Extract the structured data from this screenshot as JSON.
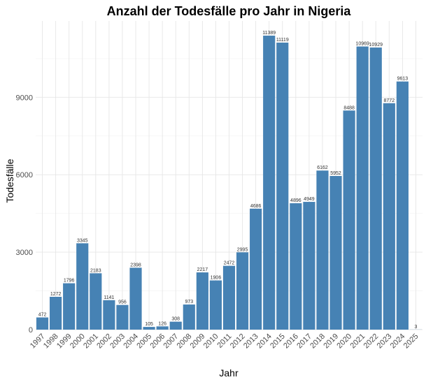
{
  "chart_data": {
    "type": "bar",
    "title": "Anzahl der Todesfälle pro Jahr in Nigeria",
    "xlabel": "Jahr",
    "ylabel": "Todesfälle",
    "categories": [
      "1997",
      "1998",
      "1999",
      "2000",
      "2001",
      "2002",
      "2003",
      "2004",
      "2005",
      "2006",
      "2007",
      "2008",
      "2009",
      "2010",
      "2011",
      "2012",
      "2013",
      "2014",
      "2015",
      "2016",
      "2017",
      "2018",
      "2019",
      "2020",
      "2021",
      "2022",
      "2023",
      "2024",
      "2025"
    ],
    "values": [
      472,
      1272,
      1796,
      3345,
      2183,
      1141,
      956,
      2398,
      105,
      126,
      308,
      973,
      2217,
      1906,
      2472,
      2995,
      4686,
      11389,
      11119,
      4896,
      4949,
      6162,
      5952,
      8488,
      10969,
      10929,
      8772,
      9613,
      3
    ],
    "data_labels": [
      "472",
      "1272",
      "1796",
      "3345",
      "2183",
      "1141",
      "956",
      "2398",
      "105",
      "126",
      "308",
      "973",
      "2217",
      "1906",
      "2472",
      "2995",
      "4686",
      "11389",
      "11119",
      "4896",
      "4949",
      "6162",
      "5952",
      "8488",
      "10969",
      "10929",
      "8772",
      "9613",
      "3"
    ],
    "y_ticks": [
      0,
      3000,
      6000,
      9000
    ],
    "y_tick_labels": [
      "0",
      "3000",
      "6000",
      "9000"
    ],
    "ylim": [
      0,
      11958
    ],
    "grid": true,
    "legend": "none",
    "bar_color": "#4682b4"
  }
}
